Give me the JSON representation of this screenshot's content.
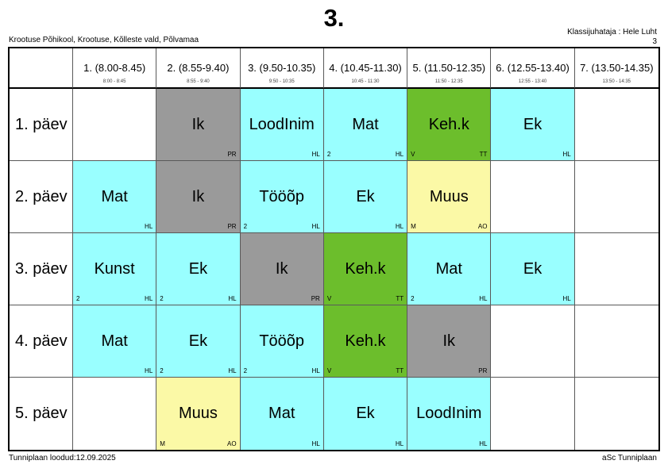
{
  "page": {
    "title": "3.",
    "school_line": "Krootuse Põhikool, Krootuse, Kõlleste vald, Põlvamaa",
    "class_teacher": "Klassijuhataja : Hele Luht",
    "class_number": "3",
    "footer_left": "Tunniplaan loodud:12.09.2025",
    "footer_right": "aSc Tunniplaan"
  },
  "colors": {
    "white": "#FFFFFF",
    "cyan": "#99FFFF",
    "gray": "#9A9A9A",
    "green": "#6CBE2C",
    "yellow": "#FBF9A6"
  },
  "columns": [
    {
      "label": "1. (8.00-8.45)",
      "sub": "8:00 - 8:45"
    },
    {
      "label": "2. (8.55-9.40)",
      "sub": "8:55 - 9:40"
    },
    {
      "label": "3. (9.50-10.35)",
      "sub": "9:50 - 10:35"
    },
    {
      "label": "4. (10.45-11.30)",
      "sub": "10:45 - 11:30"
    },
    {
      "label": "5. (11.50-12.35)",
      "sub": "11:50 - 12:35"
    },
    {
      "label": "6. (12.55-13.40)",
      "sub": "12:55 - 13:40"
    },
    {
      "label": "7. (13.50-14.35)",
      "sub": "13:50 - 14:35"
    }
  ],
  "rows": [
    {
      "day": "1. päev",
      "cells": [
        {
          "subject": "",
          "color": "white",
          "bl": "",
          "br": ""
        },
        {
          "subject": "Ik",
          "color": "gray",
          "bl": "",
          "br": "PR"
        },
        {
          "subject": "LoodInim",
          "color": "cyan",
          "bl": "",
          "br": "HL"
        },
        {
          "subject": "Mat",
          "color": "cyan",
          "bl": "2",
          "br": "HL"
        },
        {
          "subject": "Keh.k",
          "color": "green",
          "bl": "V",
          "br": "TT"
        },
        {
          "subject": "Ek",
          "color": "cyan",
          "bl": "",
          "br": "HL"
        },
        {
          "subject": "",
          "color": "white",
          "bl": "",
          "br": ""
        }
      ]
    },
    {
      "day": "2. päev",
      "cells": [
        {
          "subject": "Mat",
          "color": "cyan",
          "bl": "",
          "br": "HL"
        },
        {
          "subject": "Ik",
          "color": "gray",
          "bl": "",
          "br": "PR"
        },
        {
          "subject": "Tööõp",
          "color": "cyan",
          "bl": "2",
          "br": "HL"
        },
        {
          "subject": "Ek",
          "color": "cyan",
          "bl": "",
          "br": "HL"
        },
        {
          "subject": "Muus",
          "color": "yellow",
          "bl": "M",
          "br": "AO"
        },
        {
          "subject": "",
          "color": "white",
          "bl": "",
          "br": ""
        },
        {
          "subject": "",
          "color": "white",
          "bl": "",
          "br": ""
        }
      ]
    },
    {
      "day": "3. päev",
      "cells": [
        {
          "subject": "Kunst",
          "color": "cyan",
          "bl": "2",
          "br": "HL"
        },
        {
          "subject": "Ek",
          "color": "cyan",
          "bl": "2",
          "br": "HL"
        },
        {
          "subject": "Ik",
          "color": "gray",
          "bl": "",
          "br": "PR"
        },
        {
          "subject": "Keh.k",
          "color": "green",
          "bl": "V",
          "br": "TT"
        },
        {
          "subject": "Mat",
          "color": "cyan",
          "bl": "2",
          "br": "HL"
        },
        {
          "subject": "Ek",
          "color": "cyan",
          "bl": "",
          "br": "HL"
        },
        {
          "subject": "",
          "color": "white",
          "bl": "",
          "br": ""
        }
      ]
    },
    {
      "day": "4. päev",
      "cells": [
        {
          "subject": "Mat",
          "color": "cyan",
          "bl": "",
          "br": "HL"
        },
        {
          "subject": "Ek",
          "color": "cyan",
          "bl": "2",
          "br": "HL"
        },
        {
          "subject": "Tööõp",
          "color": "cyan",
          "bl": "2",
          "br": "HL"
        },
        {
          "subject": "Keh.k",
          "color": "green",
          "bl": "V",
          "br": "TT"
        },
        {
          "subject": "Ik",
          "color": "gray",
          "bl": "",
          "br": "PR"
        },
        {
          "subject": "",
          "color": "white",
          "bl": "",
          "br": ""
        },
        {
          "subject": "",
          "color": "white",
          "bl": "",
          "br": ""
        }
      ]
    },
    {
      "day": "5. päev",
      "cells": [
        {
          "subject": "",
          "color": "white",
          "bl": "",
          "br": ""
        },
        {
          "subject": "Muus",
          "color": "yellow",
          "bl": "M",
          "br": "AO"
        },
        {
          "subject": "Mat",
          "color": "cyan",
          "bl": "",
          "br": "HL"
        },
        {
          "subject": "Ek",
          "color": "cyan",
          "bl": "",
          "br": "HL"
        },
        {
          "subject": "LoodInim",
          "color": "cyan",
          "bl": "",
          "br": "HL"
        },
        {
          "subject": "",
          "color": "white",
          "bl": "",
          "br": ""
        },
        {
          "subject": "",
          "color": "white",
          "bl": "",
          "br": ""
        }
      ]
    }
  ]
}
